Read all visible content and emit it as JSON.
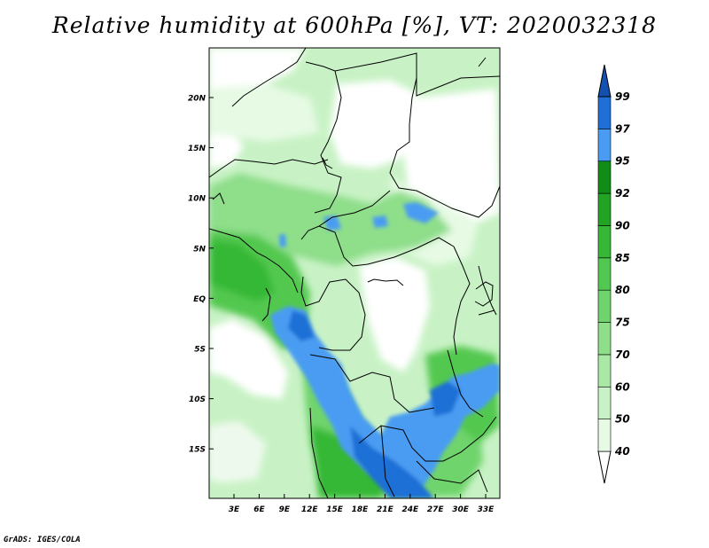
{
  "title": "Relative humidity at 600hPa [%], VT: 2020032318",
  "credit": "GrADS: IGES/COLA",
  "map": {
    "lat_ticks": [
      "20N",
      "15N",
      "10N",
      "5N",
      "EQ",
      "5S",
      "10S",
      "15S"
    ],
    "lon_ticks": [
      "3E",
      "6E",
      "9E",
      "12E",
      "15E",
      "18E",
      "21E",
      "24E",
      "27E",
      "30E",
      "33E"
    ]
  },
  "colorbar": {
    "levels": [
      "40",
      "50",
      "60",
      "70",
      "75",
      "80",
      "85",
      "90",
      "92",
      "95",
      "97",
      "99"
    ],
    "colors": [
      "#ffffff",
      "#e6fae4",
      "#c8f2c5",
      "#aae8a6",
      "#8ede8a",
      "#6fd46c",
      "#52c850",
      "#36b836",
      "#22a324",
      "#118c14",
      "#4a9cf2",
      "#1f6fd6",
      "#1450b0"
    ]
  }
}
